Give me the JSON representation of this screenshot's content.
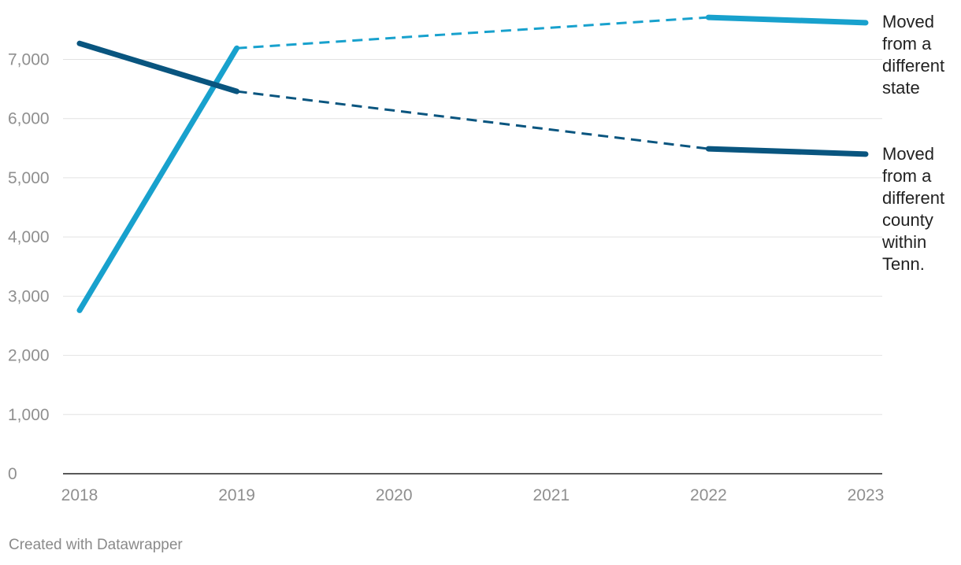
{
  "chart_data": {
    "type": "line",
    "x": [
      "2018",
      "2019",
      "2020",
      "2021",
      "2022",
      "2023"
    ],
    "y_ticks": [
      "0",
      "1,000",
      "2,000",
      "3,000",
      "4,000",
      "5,000",
      "6,000",
      "7,000"
    ],
    "ylim": [
      0,
      7500
    ],
    "grid": true,
    "series": [
      {
        "name": "Moved from a different state",
        "label_lines": [
          "Moved",
          "from a",
          "different",
          "state"
        ],
        "color": "#18a1cd",
        "points": [
          {
            "x": "2018",
            "y": 2760
          },
          {
            "x": "2019",
            "y": 7190
          },
          {
            "x": "2022",
            "y": 7710
          },
          {
            "x": "2023",
            "y": 7620
          }
        ],
        "solid_segments": [
          [
            "2018",
            "2019"
          ],
          [
            "2022",
            "2023"
          ]
        ],
        "dashed_segments": [
          [
            "2019",
            "2022"
          ]
        ]
      },
      {
        "name": "Moved from a different county within Tenn.",
        "label_lines": [
          "Moved",
          "from a",
          "different",
          "county",
          "within",
          "Tenn."
        ],
        "color": "#09557f",
        "points": [
          {
            "x": "2018",
            "y": 7270
          },
          {
            "x": "2019",
            "y": 6460
          },
          {
            "x": "2022",
            "y": 5490
          },
          {
            "x": "2023",
            "y": 5400
          }
        ],
        "solid_segments": [
          [
            "2018",
            "2019"
          ],
          [
            "2022",
            "2023"
          ]
        ],
        "dashed_segments": [
          [
            "2019",
            "2022"
          ]
        ]
      }
    ]
  },
  "footer": "Created with Datawrapper"
}
